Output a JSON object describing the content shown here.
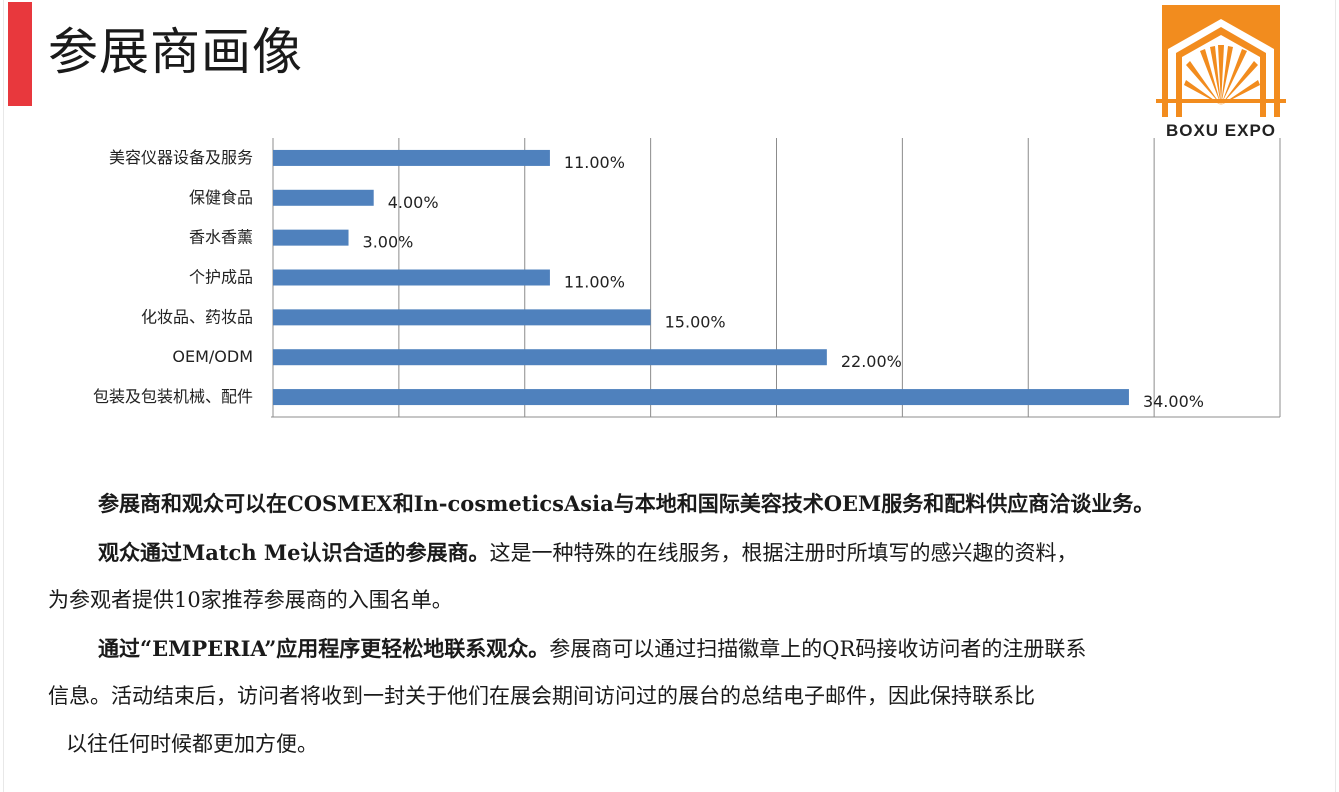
{
  "slide": {
    "title": "参展商画像",
    "accent_color": "#e8383d"
  },
  "logo": {
    "text": "BOXU EXPO",
    "color": "#f28c1e",
    "icon": "sunburst-house-icon"
  },
  "chart_data": {
    "type": "bar",
    "orientation": "horizontal",
    "categories": [
      "美容仪器设备及服务",
      "保健食品",
      "香水香薰",
      "个护成品",
      "化妆品、药妆品",
      "OEM/ODM",
      "包装及包装机械、配件"
    ],
    "values": [
      11,
      4,
      3,
      11,
      15,
      22,
      34
    ],
    "data_labels": [
      "11.00%",
      "4.00%",
      "3.00%",
      "11.00%",
      "15.00%",
      "22.00%",
      "34.00%"
    ],
    "xlim": [
      0,
      40
    ],
    "x_gridlines": [
      0,
      5,
      10,
      15,
      20,
      25,
      30,
      35,
      40
    ],
    "grid": true,
    "bar_color": "#4f81bd",
    "title": "",
    "xlabel": "",
    "ylabel": ""
  },
  "paragraphs": {
    "p1_bold": "参展商和观众可以在COSMEX和In-cosmeticsAsia与本地和国际美容技术OEM服务和配料供应商洽谈业务。",
    "p2_bold": "观众通过Match Me认识合适的参展商。",
    "p2_line1": "这是一种特殊的在线服务，根据注册时所填写的感兴趣的资料，",
    "p2_line2": "为参观者提供10家推荐参展商的入围名单。",
    "p3_bold": "通过“EMPERIA”应用程序更轻松地联系观众。",
    "p3_line1": "参展商可以通过扫描徽章上的QR码接收访问者的注册联系",
    "p3_line2": "信息。活动结束后，访问者将收到一封关于他们在展会期间访问过的展台的总结电子邮件，因此保持联系比",
    "p3_line3": "以往任何时候都更加方便。"
  }
}
